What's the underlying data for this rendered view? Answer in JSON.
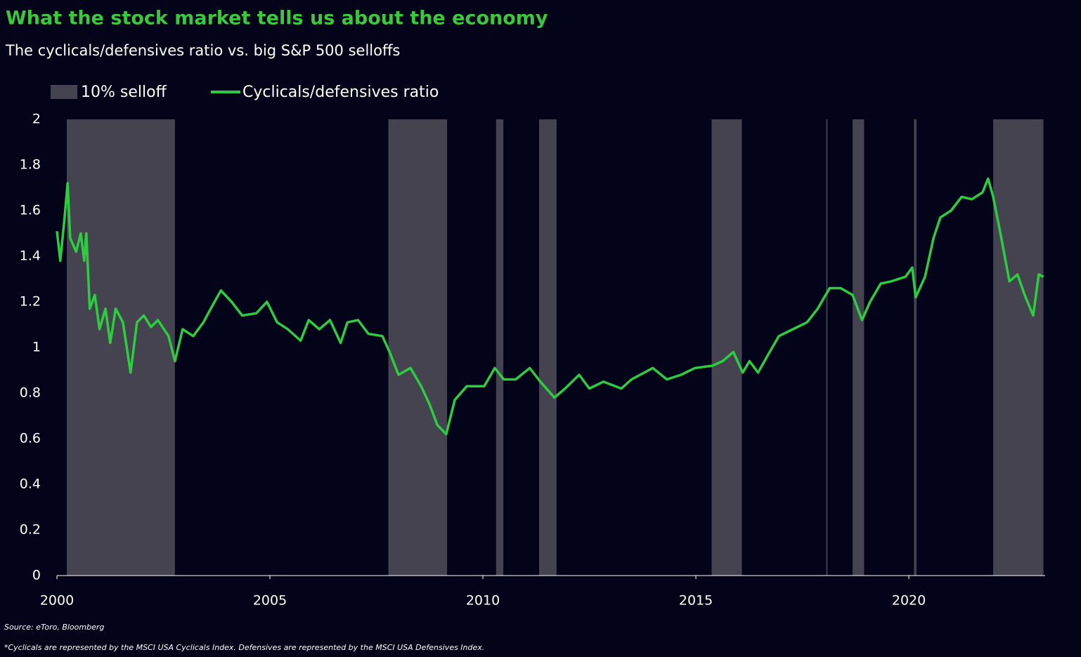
{
  "chart_data": {
    "type": "line",
    "title": "What the stock market tells us about the economy",
    "subtitle": "The cyclicals/defensives ratio vs. big S&P 500 selloffs",
    "source": "Source: eToro, Bloomberg",
    "footnote": "*Cyclicals are represented by the MSCI USA Cyclicals Index. Defensives are represented by the MSCI USA Defensives Index.",
    "xlim": [
      2000,
      2023.2
    ],
    "xticks": [
      2000,
      2005,
      2010,
      2015,
      2020
    ],
    "ylim": [
      0,
      2
    ],
    "yticks": [
      0,
      0.2,
      0.4,
      0.6,
      0.8,
      1,
      1.2,
      1.4,
      1.6,
      1.8,
      2
    ],
    "grid": false,
    "legend": "top-left",
    "selloffs": {
      "name": "10% selloff",
      "color": "#44434f",
      "ranges": [
        [
          2000.23,
          2002.77
        ],
        [
          2007.78,
          2009.16
        ],
        [
          2010.31,
          2010.48
        ],
        [
          2011.32,
          2011.73
        ],
        [
          2015.37,
          2016.08
        ],
        [
          2018.06,
          2018.09
        ],
        [
          2018.68,
          2018.95
        ],
        [
          2020.12,
          2020.18
        ],
        [
          2021.98,
          2023.16
        ]
      ]
    },
    "x": [
      2000,
      2000.08,
      2000.18,
      2000.25,
      2000.31,
      2000.45,
      2000.56,
      2000.64,
      2000.69,
      2000.77,
      2000.89,
      2001.0,
      2001.14,
      2001.25,
      2001.38,
      2001.55,
      2001.73,
      2001.88,
      2002.04,
      2002.21,
      2002.37,
      2002.62,
      2002.77,
      2002.95,
      2003.2,
      2003.44,
      2003.61,
      2003.85,
      2004.1,
      2004.35,
      2004.68,
      2004.93,
      2005.17,
      2005.42,
      2005.72,
      2005.91,
      2006.16,
      2006.41,
      2006.66,
      2006.82,
      2007.07,
      2007.31,
      2007.64,
      2007.81,
      2008.02,
      2008.3,
      2008.55,
      2008.75,
      2008.93,
      2009.14,
      2009.34,
      2009.62,
      2010.03,
      2010.28,
      2010.49,
      2010.77,
      2011.1,
      2011.35,
      2011.68,
      2011.93,
      2012.26,
      2012.5,
      2012.83,
      2013.25,
      2013.49,
      2013.99,
      2014.32,
      2014.65,
      2014.98,
      2015.39,
      2015.63,
      2015.88,
      2016.1,
      2016.26,
      2016.46,
      2016.7,
      2016.95,
      2017.28,
      2017.61,
      2017.86,
      2018.14,
      2018.4,
      2018.68,
      2018.9,
      2019.09,
      2019.34,
      2019.59,
      2019.92,
      2020.08,
      2020.16,
      2020.38,
      2020.58,
      2020.74,
      2020.99,
      2021.24,
      2021.48,
      2021.73,
      2021.86,
      2021.98,
      2022.14,
      2022.36,
      2022.55,
      2022.72,
      2022.92,
      2023.05,
      2023.16
    ],
    "series": [
      {
        "name": "Cyclicals/defensives ratio",
        "color": "#2ecc40",
        "values": [
          1.51,
          1.38,
          1.57,
          1.72,
          1.48,
          1.42,
          1.5,
          1.38,
          1.5,
          1.17,
          1.23,
          1.08,
          1.17,
          1.02,
          1.17,
          1.11,
          0.89,
          1.11,
          1.14,
          1.09,
          1.12,
          1.05,
          0.94,
          1.08,
          1.05,
          1.11,
          1.17,
          1.25,
          1.2,
          1.14,
          1.15,
          1.2,
          1.11,
          1.08,
          1.03,
          1.12,
          1.08,
          1.12,
          1.02,
          1.11,
          1.12,
          1.06,
          1.05,
          0.98,
          0.88,
          0.91,
          0.83,
          0.75,
          0.66,
          0.62,
          0.77,
          0.83,
          0.83,
          0.91,
          0.86,
          0.86,
          0.91,
          0.85,
          0.78,
          0.82,
          0.88,
          0.82,
          0.85,
          0.82,
          0.86,
          0.91,
          0.86,
          0.88,
          0.91,
          0.92,
          0.94,
          0.98,
          0.89,
          0.94,
          0.89,
          0.97,
          1.05,
          1.08,
          1.11,
          1.17,
          1.26,
          1.26,
          1.23,
          1.12,
          1.2,
          1.28,
          1.29,
          1.31,
          1.35,
          1.22,
          1.31,
          1.48,
          1.57,
          1.6,
          1.66,
          1.65,
          1.68,
          1.74,
          1.66,
          1.51,
          1.29,
          1.32,
          1.23,
          1.14,
          1.32,
          1.31
        ]
      }
    ]
  }
}
